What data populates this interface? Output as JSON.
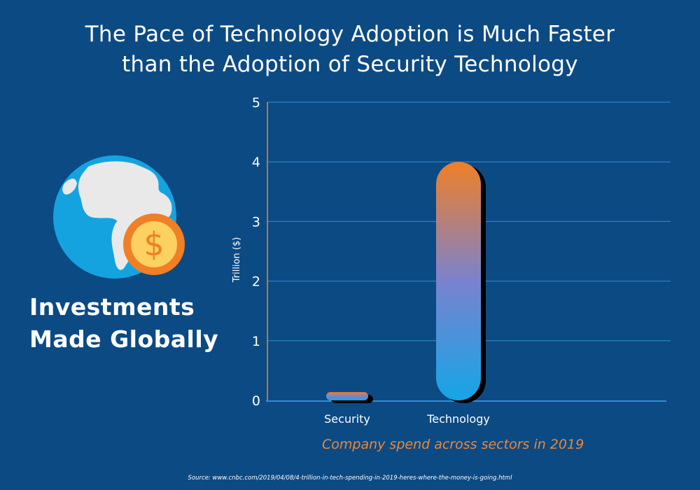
{
  "title_lines": [
    "The Pace of Technology Adoption is Much Faster",
    "than the Adoption of Security Technology"
  ],
  "side_label": [
    "Investments",
    "Made Globally"
  ],
  "icons": {
    "globe": "globe-icon",
    "coin": "dollar-coin-icon",
    "coin_symbol": "$"
  },
  "caption": "Company spend across sectors in 2019",
  "source": "Source: www.cnbc.com/2019/04/08/4-trillion-in-tech-spending-in-2019-heres-where-the-money-is-going.html",
  "colors": {
    "background": "#0c4a84",
    "bar_top": "#f07f26",
    "bar_mid": "#7a82cf",
    "bar_bottom": "#14a6e6",
    "grid": "#2f8fd0",
    "axis_accent": "#e8893a",
    "caption": "#e8893a"
  },
  "chart_data": {
    "type": "bar",
    "categories": [
      "Security",
      "Technology"
    ],
    "values": [
      0.14,
      4.0
    ],
    "title": "The Pace of Technology Adoption is Much Faster than the Adoption of Security Technology",
    "xlabel": "Company spend across sectors in 2019",
    "ylabel": "Trillion ($)",
    "ylim": [
      0,
      5
    ],
    "yticks": [
      0,
      1,
      2,
      3,
      4,
      5
    ],
    "grid": true
  }
}
